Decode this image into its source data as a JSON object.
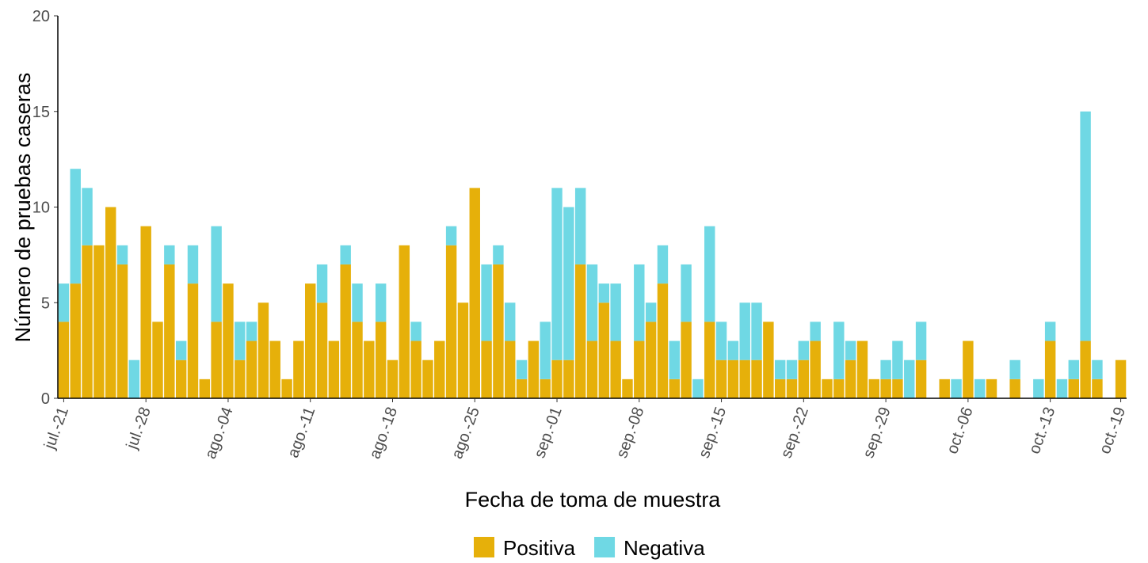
{
  "chart_data": {
    "type": "stacked_bar",
    "x_label": "Fecha de toma de muestra",
    "y_label": "Número de pruebas caseras",
    "categories": [
      "jul.-21",
      null,
      null,
      null,
      null,
      null,
      null,
      "jul.-28",
      null,
      null,
      null,
      null,
      null,
      null,
      "ago.-04",
      null,
      null,
      null,
      null,
      null,
      null,
      "ago.-11",
      null,
      null,
      null,
      null,
      null,
      null,
      "ago.-18",
      null,
      null,
      null,
      null,
      null,
      null,
      "ago.-25",
      null,
      null,
      null,
      null,
      null,
      null,
      "sep.-01",
      null,
      null,
      null,
      null,
      null,
      null,
      "sep.-08",
      null,
      null,
      null,
      null,
      null,
      null,
      "sep.-15",
      null,
      null,
      null,
      null,
      null,
      null,
      "sep.-22",
      null,
      null,
      null,
      null,
      null,
      null,
      "sep.-29",
      null,
      null,
      null,
      null,
      null,
      null,
      "oct.-06",
      null,
      null,
      null,
      null,
      null,
      null,
      "oct.-13",
      null,
      null,
      null,
      null,
      null,
      "oct.-19"
    ],
    "series": [
      {
        "name": "Positiva",
        "color": "#e6b00a",
        "values": [
          4,
          6,
          8,
          8,
          10,
          7,
          0,
          9,
          4,
          7,
          2,
          6,
          1,
          4,
          6,
          2,
          3,
          5,
          3,
          1,
          3,
          6,
          5,
          3,
          7,
          4,
          3,
          4,
          2,
          8,
          3,
          2,
          3,
          8,
          5,
          11,
          3,
          7,
          3,
          1,
          3,
          1,
          2,
          2,
          7,
          3,
          5,
          3,
          1,
          3,
          4,
          6,
          1,
          4,
          0,
          4,
          2,
          2,
          2,
          2,
          4,
          1,
          1,
          2,
          3,
          1,
          1,
          2,
          3,
          1,
          1,
          1,
          0,
          2,
          0,
          1,
          0,
          3,
          0,
          1,
          0,
          1,
          0,
          0,
          3,
          0,
          1,
          3,
          1,
          0,
          2
        ]
      },
      {
        "name": "Negativa",
        "color": "#6fd8e4",
        "values": [
          2,
          6,
          3,
          0,
          0,
          1,
          2,
          0,
          0,
          1,
          1,
          2,
          0,
          5,
          0,
          2,
          1,
          0,
          0,
          0,
          0,
          0,
          2,
          0,
          1,
          2,
          0,
          2,
          0,
          0,
          1,
          0,
          0,
          1,
          0,
          0,
          4,
          1,
          2,
          1,
          0,
          3,
          9,
          8,
          4,
          4,
          1,
          3,
          0,
          4,
          1,
          2,
          2,
          3,
          1,
          5,
          2,
          1,
          3,
          3,
          0,
          1,
          1,
          1,
          1,
          0,
          3,
          1,
          0,
          0,
          1,
          2,
          2,
          2,
          0,
          0,
          1,
          0,
          1,
          0,
          0,
          1,
          0,
          1,
          1,
          1,
          1,
          12,
          1,
          0,
          0
        ]
      }
    ],
    "ylim": [
      0,
      20
    ],
    "yticks": [
      0,
      5,
      10,
      15,
      20
    ],
    "grid": false,
    "legend": "bottom"
  }
}
